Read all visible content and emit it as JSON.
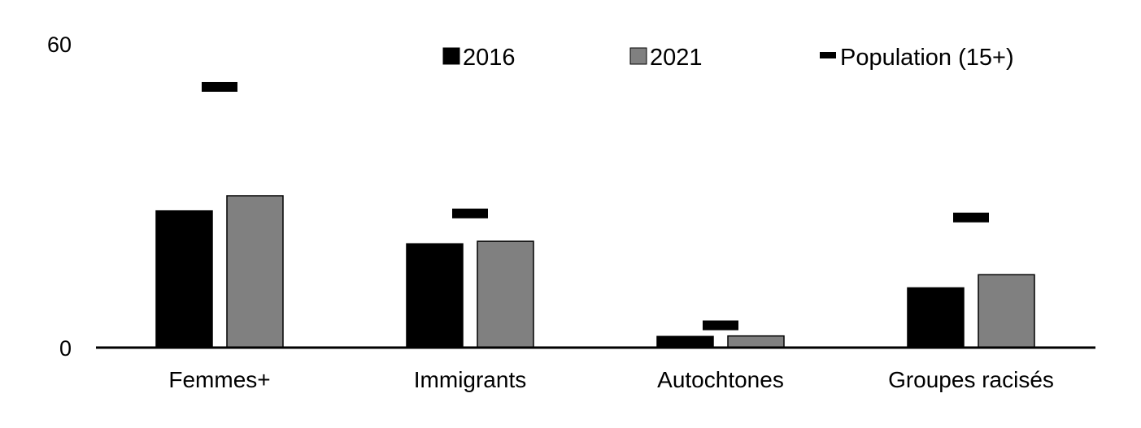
{
  "chart_data": {
    "type": "bar",
    "categories": [
      "Femmes+",
      "Immigrants",
      "Autochtones",
      "Groupes racisés"
    ],
    "series": [
      {
        "name": "2016",
        "color": "#000000",
        "values": [
          27,
          20.5,
          2.2,
          11.8
        ]
      },
      {
        "name": "2021",
        "color": "#808080",
        "values": [
          30,
          21,
          2.3,
          14.4
        ]
      }
    ],
    "markers": {
      "name": "Population (15+)",
      "color": "#000000",
      "values": [
        51.5,
        26.5,
        4.4,
        25.7
      ]
    },
    "ylim": [
      0,
      60
    ],
    "y_ticks": [
      "0",
      "60"
    ],
    "legend_position": "top",
    "grid": false
  }
}
